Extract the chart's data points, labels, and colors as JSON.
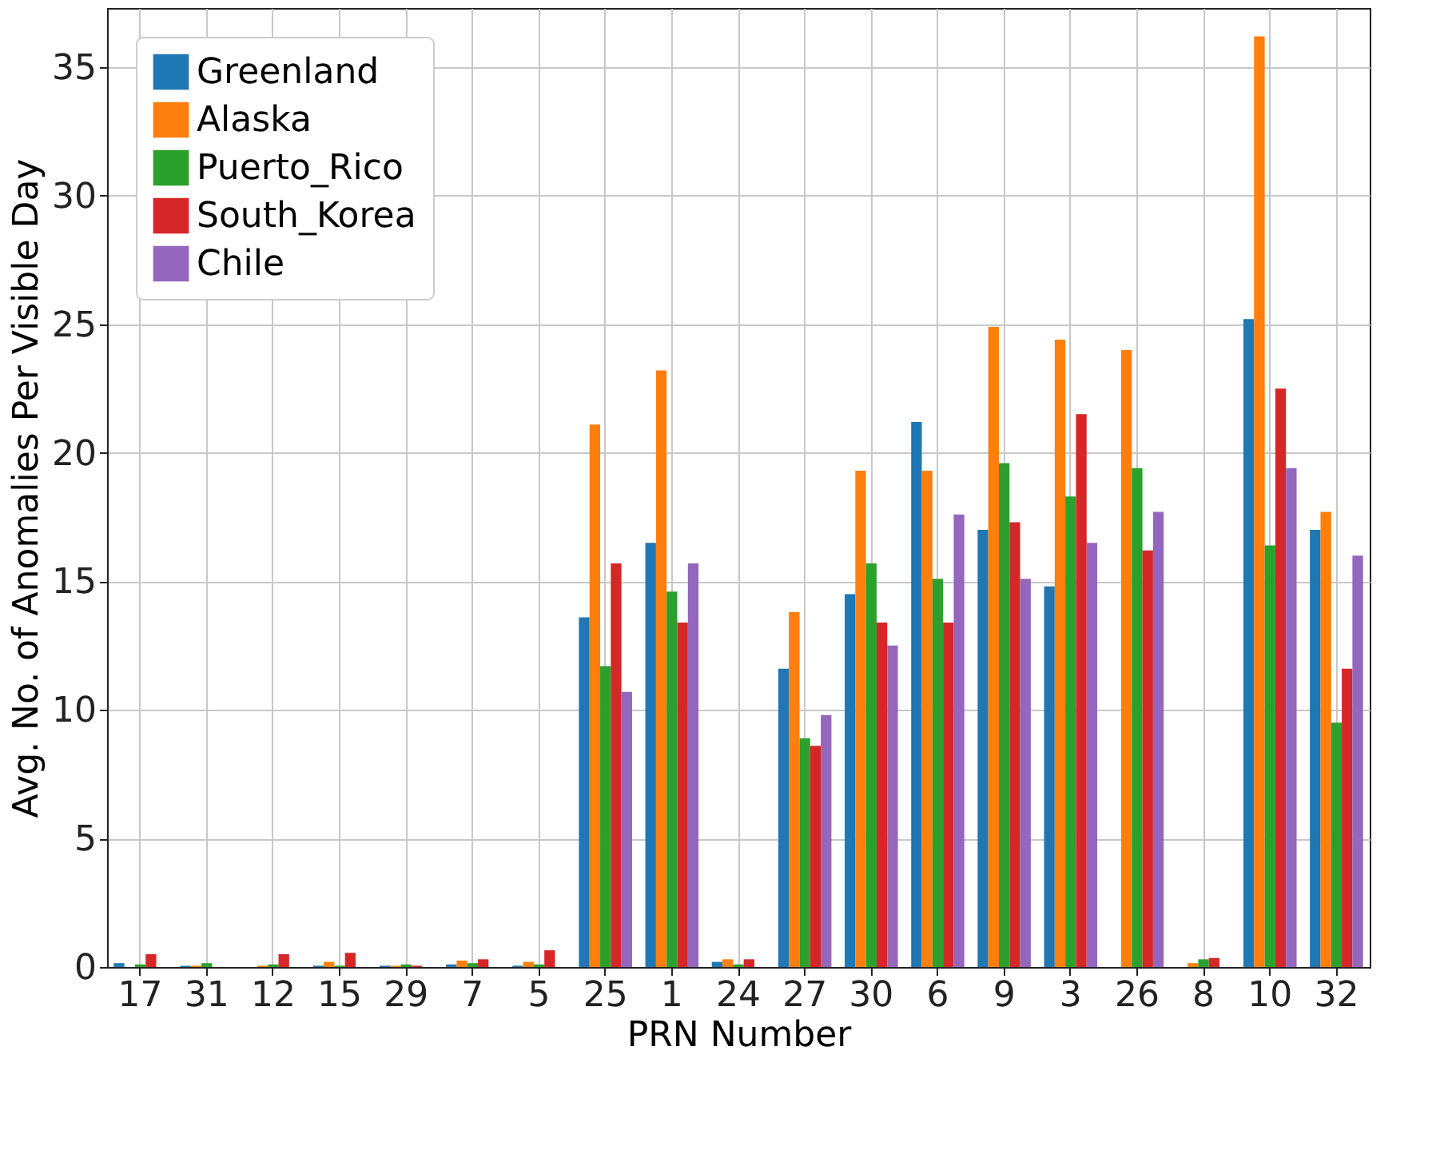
{
  "chart_data": {
    "type": "bar",
    "xlabel": "PRN Number",
    "ylabel": "Avg. No. of Anomalies Per Visible Day",
    "categories": [
      "17",
      "31",
      "12",
      "15",
      "29",
      "7",
      "5",
      "25",
      "1",
      "24",
      "27",
      "30",
      "6",
      "9",
      "3",
      "26",
      "8",
      "10",
      "32"
    ],
    "series": [
      {
        "name": "Greenland",
        "color": "#1f77b4",
        "values": [
          0.15,
          0.05,
          0,
          0.05,
          0.05,
          0.1,
          0.05,
          13.6,
          16.5,
          0.2,
          11.6,
          14.5,
          21.2,
          17.0,
          14.8,
          0,
          0,
          25.2,
          17.0
        ]
      },
      {
        "name": "Alaska",
        "color": "#ff7f0e",
        "values": [
          0,
          0.05,
          0.05,
          0.2,
          0.05,
          0.25,
          0.2,
          21.1,
          23.2,
          0.3,
          13.8,
          19.3,
          19.3,
          24.9,
          24.4,
          24.0,
          0.15,
          36.2,
          17.7
        ]
      },
      {
        "name": "Puerto_Rico",
        "color": "#2ca02c",
        "values": [
          0.1,
          0.15,
          0.1,
          0.05,
          0.1,
          0.15,
          0.1,
          11.7,
          14.6,
          0.1,
          8.9,
          15.7,
          15.1,
          19.6,
          18.3,
          19.4,
          0.3,
          16.4,
          9.5
        ]
      },
      {
        "name": "South_Korea",
        "color": "#d62728",
        "values": [
          0.5,
          0,
          0.5,
          0.55,
          0.05,
          0.3,
          0.65,
          15.7,
          13.4,
          0.3,
          8.6,
          13.4,
          13.4,
          17.3,
          21.5,
          16.2,
          0.35,
          22.5,
          11.6
        ]
      },
      {
        "name": "Chile",
        "color": "#9467bd",
        "values": [
          0,
          0,
          0,
          0,
          0,
          0,
          0,
          10.7,
          15.7,
          0,
          9.8,
          12.5,
          17.6,
          15.1,
          16.5,
          17.7,
          0,
          19.4,
          16.0
        ]
      }
    ],
    "ylim": [
      0,
      37.3
    ],
    "yticks": [
      0,
      5,
      10,
      15,
      20,
      25,
      30,
      35
    ],
    "grid": true,
    "legend": "top left"
  }
}
